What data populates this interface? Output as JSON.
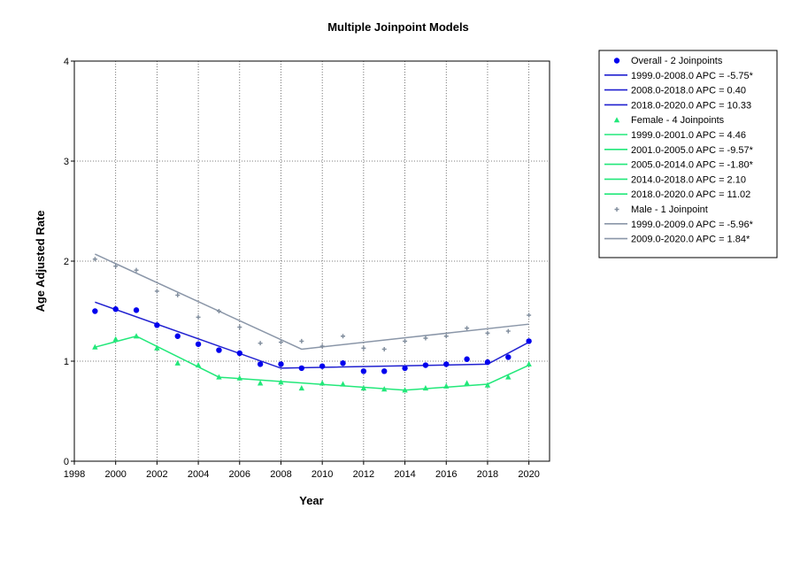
{
  "chart_data": {
    "type": "line",
    "title": "Multiple Joinpoint Models",
    "xlabel": "Year",
    "ylabel": "Age Adjusted Rate",
    "xlim": [
      1998,
      2021
    ],
    "ylim": [
      0,
      4
    ],
    "x_ticks": [
      "1998",
      "2000",
      "2002",
      "2004",
      "2006",
      "2008",
      "2010",
      "2012",
      "2014",
      "2016",
      "2018",
      "2020"
    ],
    "y_ticks": [
      "0",
      "1",
      "2",
      "3",
      "4"
    ],
    "grid": true,
    "legend_position": "top-right (outside plot)",
    "series": [
      {
        "name": "Overall - 2 Joinpoints",
        "color": "#0000ee",
        "line_color": "#2020d0",
        "marker": "circle",
        "observed": {
          "x": [
            1999,
            2000,
            2001,
            2002,
            2003,
            2004,
            2005,
            2006,
            2007,
            2008,
            2009,
            2010,
            2011,
            2012,
            2013,
            2014,
            2015,
            2016,
            2017,
            2018,
            2019,
            2020
          ],
          "y": [
            1.5,
            1.52,
            1.51,
            1.36,
            1.25,
            1.17,
            1.11,
            1.08,
            0.97,
            0.97,
            0.93,
            0.95,
            0.98,
            0.9,
            0.9,
            0.93,
            0.96,
            0.97,
            1.02,
            0.99,
            1.04,
            1.2
          ]
        },
        "fit": {
          "x": [
            1999,
            2008,
            2018,
            2020
          ],
          "y": [
            1.59,
            0.93,
            0.97,
            1.19
          ]
        },
        "segments": [
          "1999.0-2008.0 APC  =  -5.75*",
          "2008.0-2018.0 APC  =  0.40",
          "2018.0-2020.0 APC  =  10.33"
        ]
      },
      {
        "name": "Female - 4 Joinpoints",
        "color": "#22e87a",
        "line_color": "#22e87a",
        "marker": "triangle",
        "observed": {
          "x": [
            1999,
            2000,
            2001,
            2002,
            2003,
            2004,
            2005,
            2006,
            2007,
            2008,
            2009,
            2010,
            2011,
            2012,
            2013,
            2014,
            2015,
            2016,
            2017,
            2018,
            2019,
            2020
          ],
          "y": [
            1.14,
            1.22,
            1.25,
            1.13,
            0.98,
            0.96,
            0.84,
            0.83,
            0.78,
            0.79,
            0.73,
            0.78,
            0.77,
            0.73,
            0.72,
            0.71,
            0.73,
            0.75,
            0.78,
            0.76,
            0.84,
            0.97
          ]
        },
        "fit": {
          "x": [
            1999,
            2001,
            2005,
            2014,
            2018,
            2020
          ],
          "y": [
            1.14,
            1.25,
            0.84,
            0.71,
            0.77,
            0.96
          ]
        },
        "segments": [
          "1999.0-2001.0 APC  =  4.46",
          "2001.0-2005.0 APC  =  -9.57*",
          "2005.0-2014.0 APC  =  -1.80*",
          "2014.0-2018.0 APC  =  2.10",
          "2018.0-2020.0 APC  =  11.02"
        ]
      },
      {
        "name": "Male - 1 Joinpoint",
        "color": "#7f8c9c",
        "line_color": "#8a96a8",
        "marker": "plus",
        "observed": {
          "x": [
            1999,
            2000,
            2001,
            2002,
            2003,
            2004,
            2005,
            2006,
            2007,
            2008,
            2009,
            2010,
            2011,
            2012,
            2013,
            2014,
            2015,
            2016,
            2017,
            2018,
            2019,
            2020
          ],
          "y": [
            2.02,
            1.95,
            1.91,
            1.7,
            1.66,
            1.44,
            1.5,
            1.34,
            1.18,
            1.19,
            1.2,
            1.15,
            1.25,
            1.13,
            1.12,
            1.2,
            1.23,
            1.25,
            1.33,
            1.28,
            1.3,
            1.46
          ]
        },
        "fit": {
          "x": [
            1999,
            2009,
            2020
          ],
          "y": [
            2.07,
            1.12,
            1.37
          ]
        },
        "segments": [
          "1999.0-2009.0 APC  =  -5.96*",
          "2009.0-2020.0 APC  =  1.84*"
        ]
      }
    ]
  }
}
